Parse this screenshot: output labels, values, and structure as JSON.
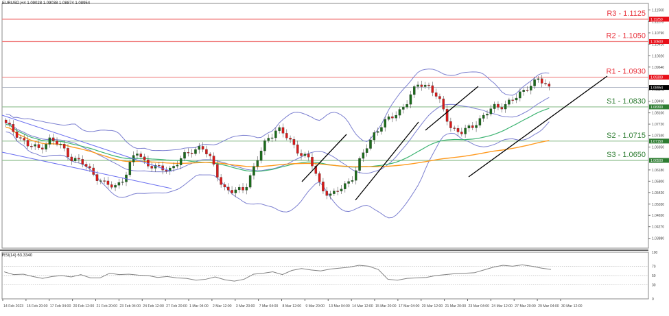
{
  "header": {
    "symbol_title": "EURUSD,H4  1.09028 1.09038 1.08874 1.08954"
  },
  "chart_data": {
    "type": "candlestick",
    "title": "EURUSD,H4",
    "ohlc_current": {
      "open": 1.09028,
      "high": 1.09038,
      "low": 1.08874,
      "close": 1.08954
    },
    "current_price_label": "1.08954",
    "price_axis": {
      "ylim": [
        1.035,
        1.1156
      ],
      "ticks": [
        "1.11560",
        "1.11170",
        "1.10790",
        "1.10410",
        "1.10020",
        "1.09640",
        "1.08870",
        "1.08490",
        "1.08100",
        "1.07720",
        "1.07340",
        "1.06950",
        "1.06180",
        "1.05800",
        "1.05420",
        "1.05030",
        "1.04650",
        "1.04270",
        "1.03880",
        "1.03500"
      ]
    },
    "levels": [
      {
        "name": "R3",
        "label": "R3 - 1.1125",
        "value": 1.1125,
        "axis_label": "1.11250",
        "color": "#e8323c",
        "type": "resistance"
      },
      {
        "name": "R2",
        "label": "R2 - 1.1050",
        "value": 1.105,
        "axis_label": "1.10500",
        "color": "#e8323c",
        "type": "resistance"
      },
      {
        "name": "R1",
        "label": "R1 - 1.0930",
        "value": 1.093,
        "axis_label": "1.09300",
        "color": "#e8323c",
        "type": "resistance"
      },
      {
        "name": "S1",
        "label": "S1 - 1.0830",
        "value": 1.083,
        "axis_label": "1.08300",
        "color": "#2e7d32",
        "type": "support"
      },
      {
        "name": "S2",
        "label": "S2 - 1.0715",
        "value": 1.0715,
        "axis_label": "1.07150",
        "color": "#2e7d32",
        "type": "support"
      },
      {
        "name": "S3",
        "label": "S3 - 1.0650",
        "value": 1.065,
        "axis_label": "1.06500",
        "color": "#2e7d32",
        "type": "support"
      }
    ],
    "x_tick_labels": [
      "14 Feb 2023",
      "15 Feb 20:00",
      "17 Feb 04:00",
      "20 Feb 12:00",
      "21 Feb 20:00",
      "23 Feb 04:00",
      "24 Feb 12:00",
      "27 Feb 20:00",
      "1 Mar 04:00",
      "2 Mar 12:00",
      "3 Mar 20:00",
      "7 Mar 04:00",
      "8 Mar 12:00",
      "9 Mar 20:00",
      "13 Mar 04:00",
      "14 Mar 12:00",
      "15 Mar 20:00",
      "17 Mar 04:00",
      "20 Mar 12:00",
      "21 Mar 20:00",
      "23 Mar 04:00",
      "24 Mar 12:00",
      "27 Mar 20:00",
      "29 Mar 04:00",
      "30 Mar 12:00"
    ],
    "series": [
      {
        "name": "Bollinger Bands",
        "color": "#7b7fd0"
      },
      {
        "name": "MA (green)",
        "color": "#3cb371"
      },
      {
        "name": "MA (orange)",
        "color": "#ff9a1f"
      },
      {
        "name": "Trendlines",
        "color": "#000000"
      },
      {
        "name": "Downtrend channel",
        "color": "#6a6ff0"
      }
    ],
    "price_path_approx": [
      1.077,
      1.074,
      1.07,
      1.069,
      1.072,
      1.07,
      1.066,
      1.064,
      1.061,
      1.057,
      1.056,
      1.06,
      1.068,
      1.064,
      1.062,
      1.062,
      1.065,
      1.068,
      1.07,
      1.064,
      1.056,
      1.054,
      1.056,
      1.064,
      1.072,
      1.076,
      1.072,
      1.068,
      1.065,
      1.056,
      1.053,
      1.056,
      1.06,
      1.068,
      1.075,
      1.078,
      1.081,
      1.085,
      1.091,
      1.09,
      1.084,
      1.076,
      1.074,
      1.077,
      1.08,
      1.083,
      1.084,
      1.086,
      1.09,
      1.092,
      1.0895
    ],
    "rsi": {
      "label": "RSI(14) 63.3340",
      "period": 14,
      "value": 63.334,
      "ylim": [
        0,
        100
      ],
      "levels": [
        70,
        50,
        30
      ],
      "axis_ticks": [
        "100",
        "70",
        "50",
        "30",
        "0"
      ],
      "values_approx": [
        58,
        52,
        53,
        48,
        44,
        48,
        50,
        47,
        52,
        45,
        45,
        55,
        52,
        53,
        51,
        50,
        46,
        48,
        45,
        44,
        40,
        42,
        47,
        41,
        38,
        42,
        53,
        55,
        58,
        52,
        61,
        65,
        62,
        60,
        64,
        66,
        68,
        72,
        70,
        63,
        42,
        40,
        44,
        45,
        46,
        50,
        52,
        54,
        55,
        56,
        62,
        68,
        72,
        70,
        73,
        70,
        66,
        63
      ],
      "color": "#808080"
    }
  },
  "rsi_panel": {
    "title": "RSI(14) 63.3340"
  }
}
